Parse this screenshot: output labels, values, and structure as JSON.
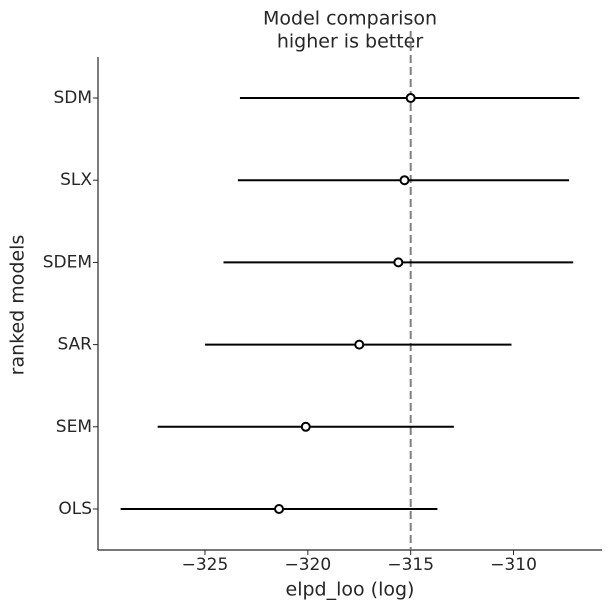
{
  "chart_data": {
    "type": "forest",
    "title": [
      "Model comparison",
      "higher is better"
    ],
    "xlabel": "elpd_loo (log)",
    "ylabel": "ranked models",
    "categories": [
      "SDM",
      "SLX",
      "SDEM",
      "SAR",
      "SEM",
      "OLS"
    ],
    "values": [
      -315.0,
      -315.3,
      -315.6,
      -317.5,
      -320.1,
      -321.4
    ],
    "lower": [
      -323.3,
      -323.4,
      -324.1,
      -325.0,
      -327.3,
      -329.1
    ],
    "upper": [
      -306.8,
      -307.3,
      -307.1,
      -310.1,
      -312.9,
      -313.7
    ],
    "reference_line": -315.0,
    "color": "#000000",
    "reference_color": "#808080",
    "xlim": [
      -330.2,
      -305.7
    ],
    "xticks": [
      {
        "value": -325,
        "label": "−325"
      },
      {
        "value": -320,
        "label": "−320"
      },
      {
        "value": -315,
        "label": "−315"
      },
      {
        "value": -310,
        "label": "−310"
      }
    ]
  }
}
